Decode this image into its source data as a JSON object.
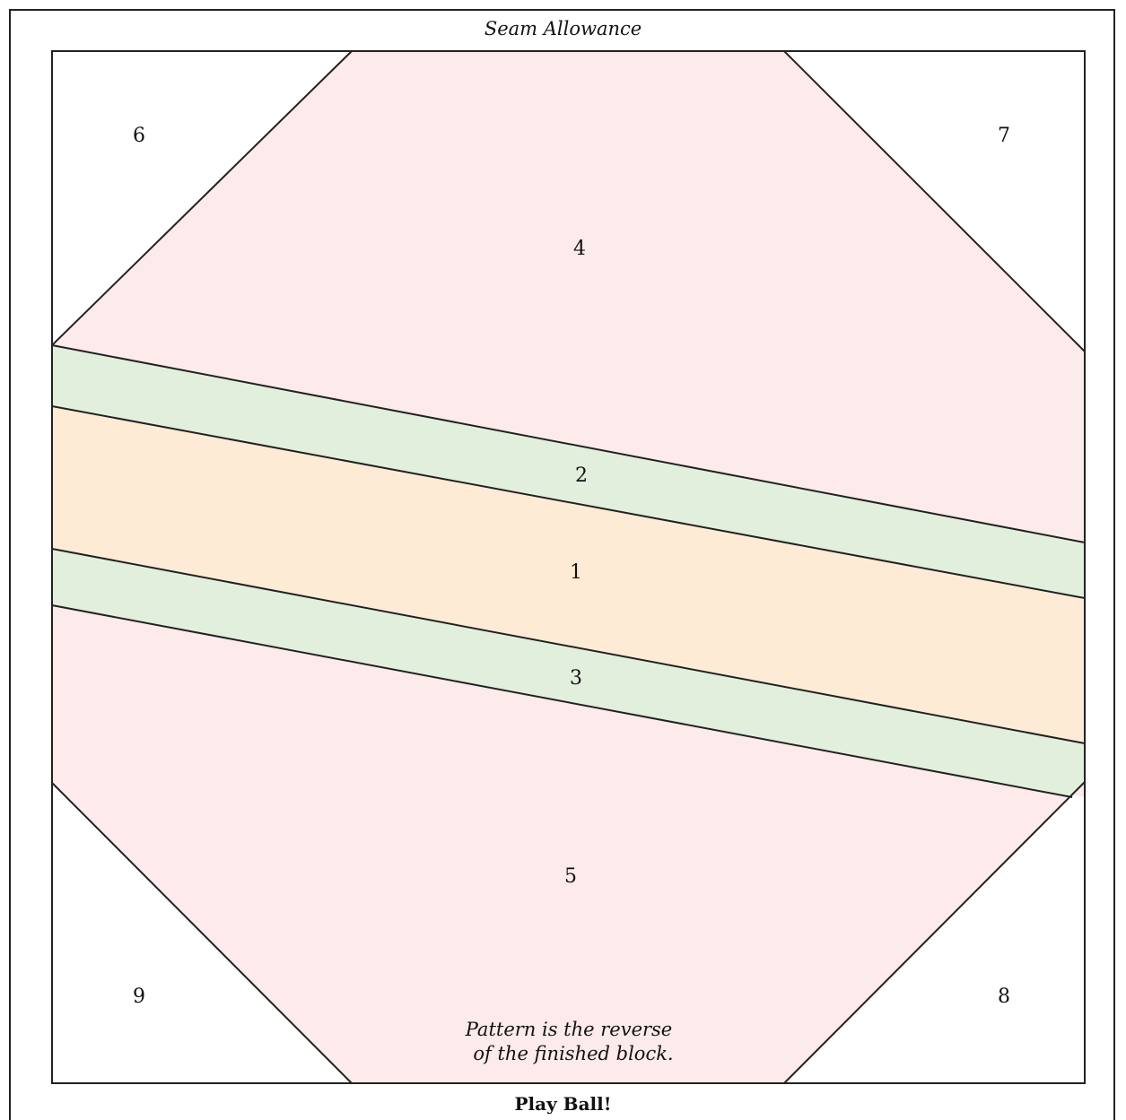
{
  "header": {
    "seam_allowance": "Seam Allowance"
  },
  "footer": {
    "title": "Play Ball!"
  },
  "note": {
    "line1": "Pattern is the reverse",
    "line2": "of the finished block."
  },
  "pieces": [
    {
      "id": "piece-1",
      "label": "1",
      "color": "#fdebd6"
    },
    {
      "id": "piece-2",
      "label": "2",
      "color": "#e3efdd"
    },
    {
      "id": "piece-3",
      "label": "3",
      "color": "#e3efdd"
    },
    {
      "id": "piece-4",
      "label": "4",
      "color": "#fdeaea"
    },
    {
      "id": "piece-5",
      "label": "5",
      "color": "#fdeaea"
    },
    {
      "id": "piece-6",
      "label": "6",
      "color": "#ffffff"
    },
    {
      "id": "piece-7",
      "label": "7",
      "color": "#ffffff"
    },
    {
      "id": "piece-8",
      "label": "8",
      "color": "#ffffff"
    },
    {
      "id": "piece-9",
      "label": "9",
      "color": "#ffffff"
    }
  ]
}
